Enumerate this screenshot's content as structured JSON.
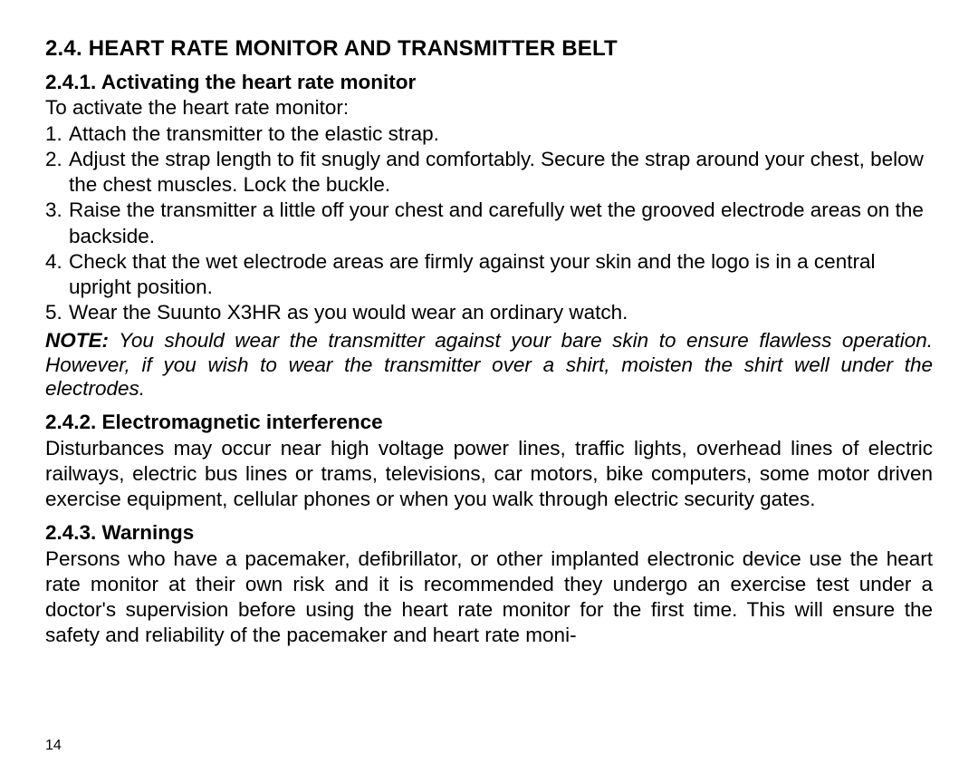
{
  "text_color": "#000000",
  "bg_color": "#ffffff",
  "section_title": "2.4. HEART RATE MONITOR AND TRANSMITTER BELT",
  "s241": {
    "title": "2.4.1. Activating the heart rate monitor",
    "intro": "To activate the heart rate monitor:",
    "steps": [
      "Attach the transmitter to the elastic strap.",
      "Adjust the strap length to fit snugly and comfortably. Secure the strap around your chest, below the chest muscles. Lock the buckle.",
      "Raise the transmitter a little off your chest and carefully wet the grooved electrode areas on the backside.",
      "Check that the wet electrode areas are firmly against your skin and the logo is in a central upright position.",
      "Wear the Suunto X3HR as you would wear an ordinary watch."
    ],
    "note_label": "NOTE:",
    "note_body": " You should wear the transmitter against your bare skin to ensure flawless operation. However, if you wish to wear the transmitter over a shirt, moisten the shirt well under the electrodes."
  },
  "s242": {
    "title": "2.4.2. Electromagnetic interference",
    "body": "Disturbances may occur near high voltage power lines, traffic lights, overhead lines of electric railways, electric bus lines or trams, televisions, car motors, bike computers, some motor driven exercise equipment, cellular phones or when you walk through electric security gates."
  },
  "s243": {
    "title": "2.4.3. Warnings",
    "body": "Persons who have a pacemaker, defibrillator, or other implanted electronic device use the heart rate monitor at their own risk and it is recommended they undergo an exercise test under a doctor's supervision before using the heart rate monitor for the first time. This will ensure the safety and reliability of the pacemaker and heart rate moni-"
  },
  "page_number": "14"
}
